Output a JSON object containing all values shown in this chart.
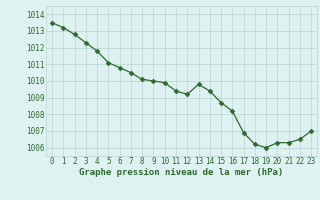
{
  "hours": [
    0,
    1,
    2,
    3,
    4,
    5,
    6,
    7,
    8,
    9,
    10,
    11,
    12,
    13,
    14,
    15,
    16,
    17,
    18,
    19,
    20,
    21,
    22,
    23
  ],
  "pressure": [
    1013.5,
    1013.2,
    1012.8,
    1012.3,
    1011.8,
    1011.1,
    1010.8,
    1010.5,
    1010.1,
    1010.0,
    1009.9,
    1009.4,
    1009.2,
    1009.8,
    1009.4,
    1008.7,
    1008.2,
    1006.9,
    1006.2,
    1006.0,
    1006.3,
    1006.3,
    1006.5,
    1007.0
  ],
  "line_color": "#2d6a2d",
  "marker": "D",
  "marker_size": 2.5,
  "bg_color": "#dff2f2",
  "grid_color": "#b8d4d4",
  "xlabel": "Graphe pression niveau de la mer (hPa)",
  "xlabel_color": "#2d6a2d",
  "tick_color": "#2d6a2d",
  "ylim": [
    1005.5,
    1014.5
  ],
  "yticks": [
    1006,
    1007,
    1008,
    1009,
    1010,
    1011,
    1012,
    1013,
    1014
  ],
  "xlim": [
    -0.5,
    23.5
  ],
  "xticks": [
    0,
    1,
    2,
    3,
    4,
    5,
    6,
    7,
    8,
    9,
    10,
    11,
    12,
    13,
    14,
    15,
    16,
    17,
    18,
    19,
    20,
    21,
    22,
    23
  ],
  "tick_fontsize": 5.5,
  "xlabel_fontsize": 6.5,
  "linewidth": 0.9
}
